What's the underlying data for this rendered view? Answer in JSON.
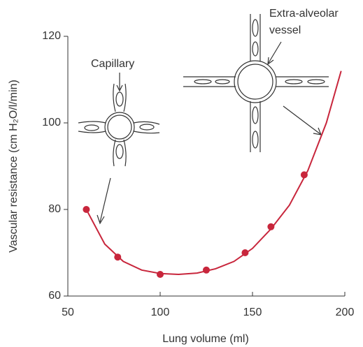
{
  "chart_data": {
    "type": "scatter",
    "x_label": "Lung volume (ml)",
    "y_label": "Vascular resistance (cm H₂O/l/min)",
    "color": "#c8263c",
    "points": {
      "x": [
        60,
        77,
        100,
        125,
        146,
        160,
        178
      ],
      "y": [
        80,
        69,
        65,
        66,
        70,
        76,
        88
      ]
    },
    "curve": {
      "x": [
        60,
        70,
        80,
        90,
        100,
        110,
        120,
        130,
        140,
        150,
        160,
        170,
        180,
        190,
        198
      ],
      "y": [
        80,
        72,
        68,
        66,
        65.2,
        65,
        65.3,
        66.3,
        68,
        71,
        75.5,
        81,
        89,
        100,
        112
      ]
    },
    "xlim": [
      50,
      200
    ],
    "xticks": [
      50,
      100,
      150,
      200
    ],
    "ylim": [
      60,
      120
    ],
    "yticks": [
      60,
      80,
      100,
      120
    ],
    "annotations": [
      "Capillary",
      "Extra-alveolar",
      "vessel"
    ]
  }
}
